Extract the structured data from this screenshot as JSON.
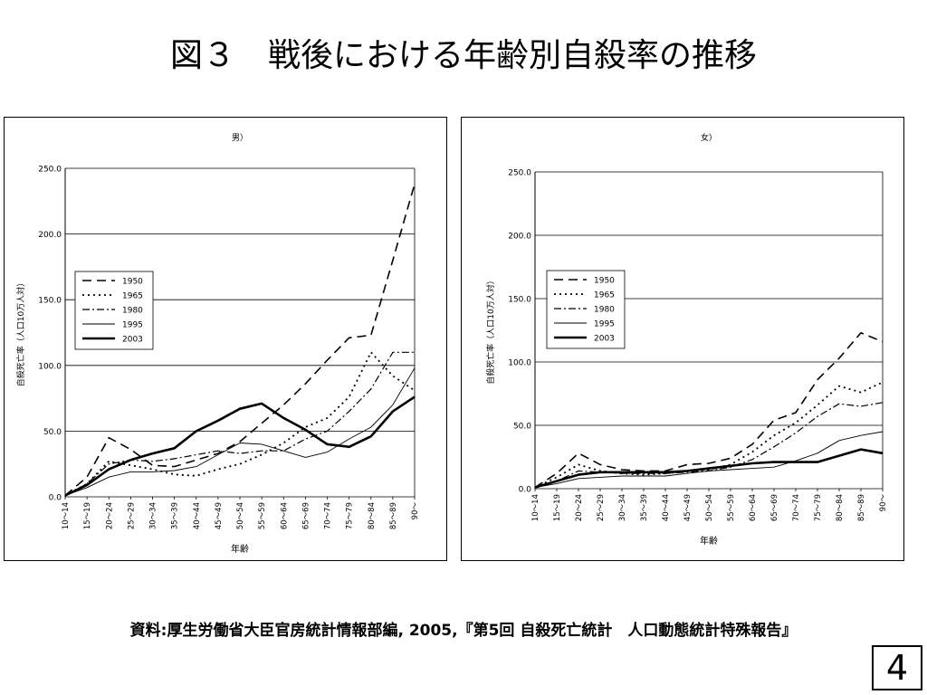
{
  "title": "図３　戦後における年齢別自殺率の推移",
  "source": "資料:厚生労働省大臣官房統計情報部編, 2005,『第5回 自殺死亡統計　人口動態統計特殊報告』",
  "page_number": "4",
  "chart_data": [
    {
      "type": "line",
      "title": "男）",
      "xlabel": "年齢",
      "ylabel": "自殺死亡率（人口10万人対）",
      "ylim": [
        0,
        250
      ],
      "yticks": [
        "0.0",
        "50.0",
        "100.0",
        "150.0",
        "200.0",
        "250.0"
      ],
      "grid": true,
      "legend_position": "upper-left",
      "categories": [
        "10～14",
        "15～19",
        "20～24",
        "25～29",
        "30～34",
        "35～39",
        "40～44",
        "45～49",
        "50～54",
        "55～59",
        "60～64",
        "65～69",
        "70～74",
        "75～79",
        "80～84",
        "85～89",
        "90～"
      ],
      "series": [
        {
          "name": "1950",
          "style": "longdash",
          "values": [
            1,
            15,
            45,
            36,
            24,
            23,
            28,
            33,
            42,
            56,
            70,
            86,
            104,
            121,
            123,
            180,
            238
          ]
        },
        {
          "name": "1965",
          "style": "dotted",
          "values": [
            1,
            10,
            27,
            24,
            21,
            17,
            16,
            21,
            25,
            32,
            41,
            53,
            60,
            76,
            110,
            92,
            81
          ]
        },
        {
          "name": "1980",
          "style": "dashdot",
          "values": [
            1,
            10,
            25,
            28,
            27,
            29,
            32,
            35,
            33,
            35,
            35,
            44,
            50,
            65,
            82,
            110,
            110
          ]
        },
        {
          "name": "1995",
          "style": "thin",
          "values": [
            1,
            7,
            15,
            19,
            19,
            20,
            23,
            32,
            41,
            40,
            35,
            30,
            34,
            44,
            53,
            70,
            98
          ]
        },
        {
          "name": "2003",
          "style": "thick",
          "values": [
            1,
            9,
            21,
            28,
            33,
            37,
            50,
            58,
            67,
            71,
            60,
            51,
            40,
            38,
            46,
            65,
            76
          ]
        }
      ]
    },
    {
      "type": "line",
      "title": "女）",
      "xlabel": "年齢",
      "ylabel": "自殺死亡率（人口10万人対）",
      "ylim": [
        0,
        250
      ],
      "yticks": [
        "0.0",
        "50.0",
        "100.0",
        "150.0",
        "200.0",
        "250.0"
      ],
      "grid": true,
      "legend_position": "upper-left",
      "categories": [
        "10～14",
        "15～19",
        "20～24",
        "25～29",
        "30～34",
        "35～39",
        "40～44",
        "45～49",
        "50～54",
        "55～59",
        "60～64",
        "65～69",
        "70～74",
        "75～79",
        "80～84",
        "85～89",
        "90～"
      ],
      "series": [
        {
          "name": "1950",
          "style": "longdash",
          "values": [
            1,
            12,
            28,
            19,
            15,
            14,
            14,
            19,
            20,
            24,
            35,
            54,
            60,
            86,
            103,
            123,
            116
          ]
        },
        {
          "name": "1965",
          "style": "dotted",
          "values": [
            1,
            9,
            19,
            14,
            12,
            11,
            12,
            14,
            15,
            19,
            29,
            42,
            52,
            66,
            81,
            76,
            84
          ]
        },
        {
          "name": "1980",
          "style": "dashdot",
          "values": [
            1,
            6,
            14,
            13,
            12,
            12,
            12,
            13,
            14,
            17,
            23,
            33,
            44,
            57,
            67,
            65,
            68
          ]
        },
        {
          "name": "1995",
          "style": "thin",
          "values": [
            1,
            4,
            8,
            9,
            10,
            10,
            10,
            12,
            14,
            15,
            16,
            17,
            22,
            28,
            38,
            42,
            45
          ]
        },
        {
          "name": "2003",
          "style": "thick",
          "values": [
            1,
            6,
            11,
            13,
            13,
            13,
            13,
            14,
            16,
            18,
            20,
            21,
            21,
            21,
            26,
            31,
            28
          ]
        }
      ]
    }
  ]
}
